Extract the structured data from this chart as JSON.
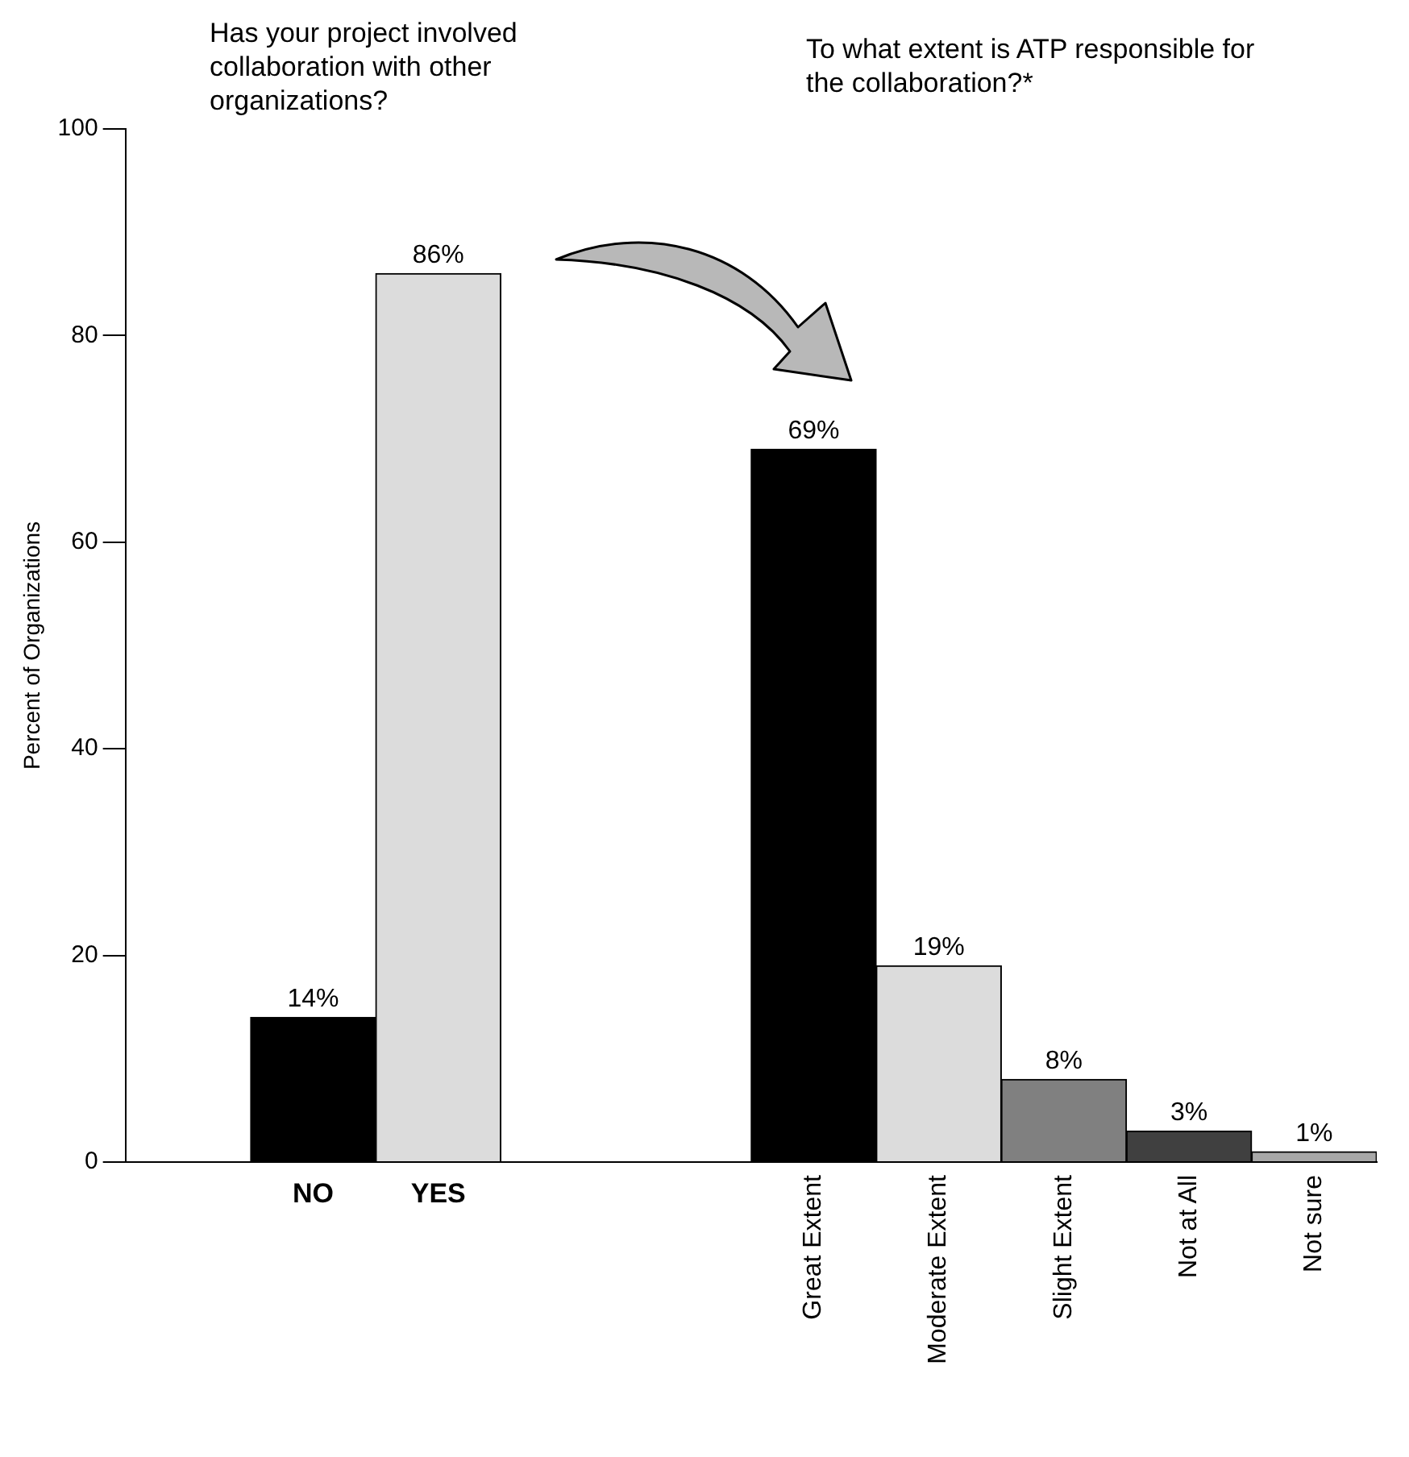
{
  "chart_data": {
    "type": "bar",
    "categories": [
      null,
      "NO",
      "YES",
      null,
      null,
      "Great Extent",
      "Moderate Extent",
      "Slight Extent",
      "Not at All",
      "Not sure"
    ],
    "values": [
      null,
      14,
      86,
      null,
      null,
      69,
      19,
      8,
      3,
      1
    ],
    "colors": [
      "#000000",
      "#000000",
      "#dcdcdc",
      "#000000",
      "#000000",
      "#000000",
      "#dcdcdc",
      "#808080",
      "#404040",
      "#a8a8a8"
    ],
    "value_labels": [
      null,
      "14%",
      "86%",
      null,
      null,
      "69%",
      "19%",
      "8%",
      "3%",
      "1%"
    ],
    "ylabel": "Percent of Organizations",
    "ylim": [
      0,
      100
    ],
    "yticks": [
      0,
      20,
      40,
      60,
      80,
      100
    ],
    "grid": false,
    "legend": false,
    "annotations": [
      "Has your project involved collaboration with other organizations?",
      "To what extent is ATP responsible for the collaboration?*"
    ]
  }
}
